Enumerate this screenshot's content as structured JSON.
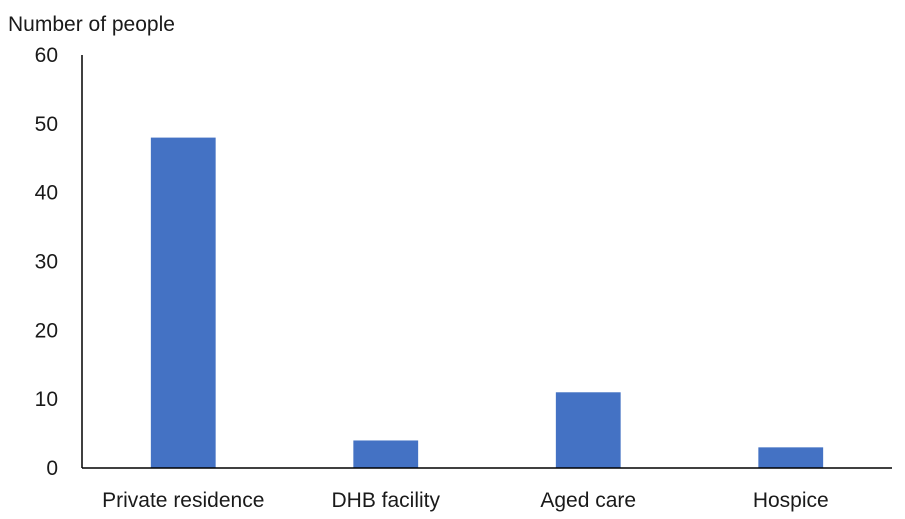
{
  "chart_data": {
    "type": "bar",
    "title": "",
    "xlabel": "",
    "ylabel": "Number of people",
    "categories": [
      "Private residence",
      "DHB facility",
      "Aged care",
      "Hospice"
    ],
    "values": [
      48,
      4,
      11,
      3
    ],
    "ylim": [
      0,
      60
    ],
    "yticks": [
      "0",
      "10",
      "20",
      "30",
      "40",
      "50",
      "60"
    ],
    "grid": false,
    "legend": "none",
    "colors": {
      "bar": "#4472C4",
      "axis": "#000000"
    }
  }
}
